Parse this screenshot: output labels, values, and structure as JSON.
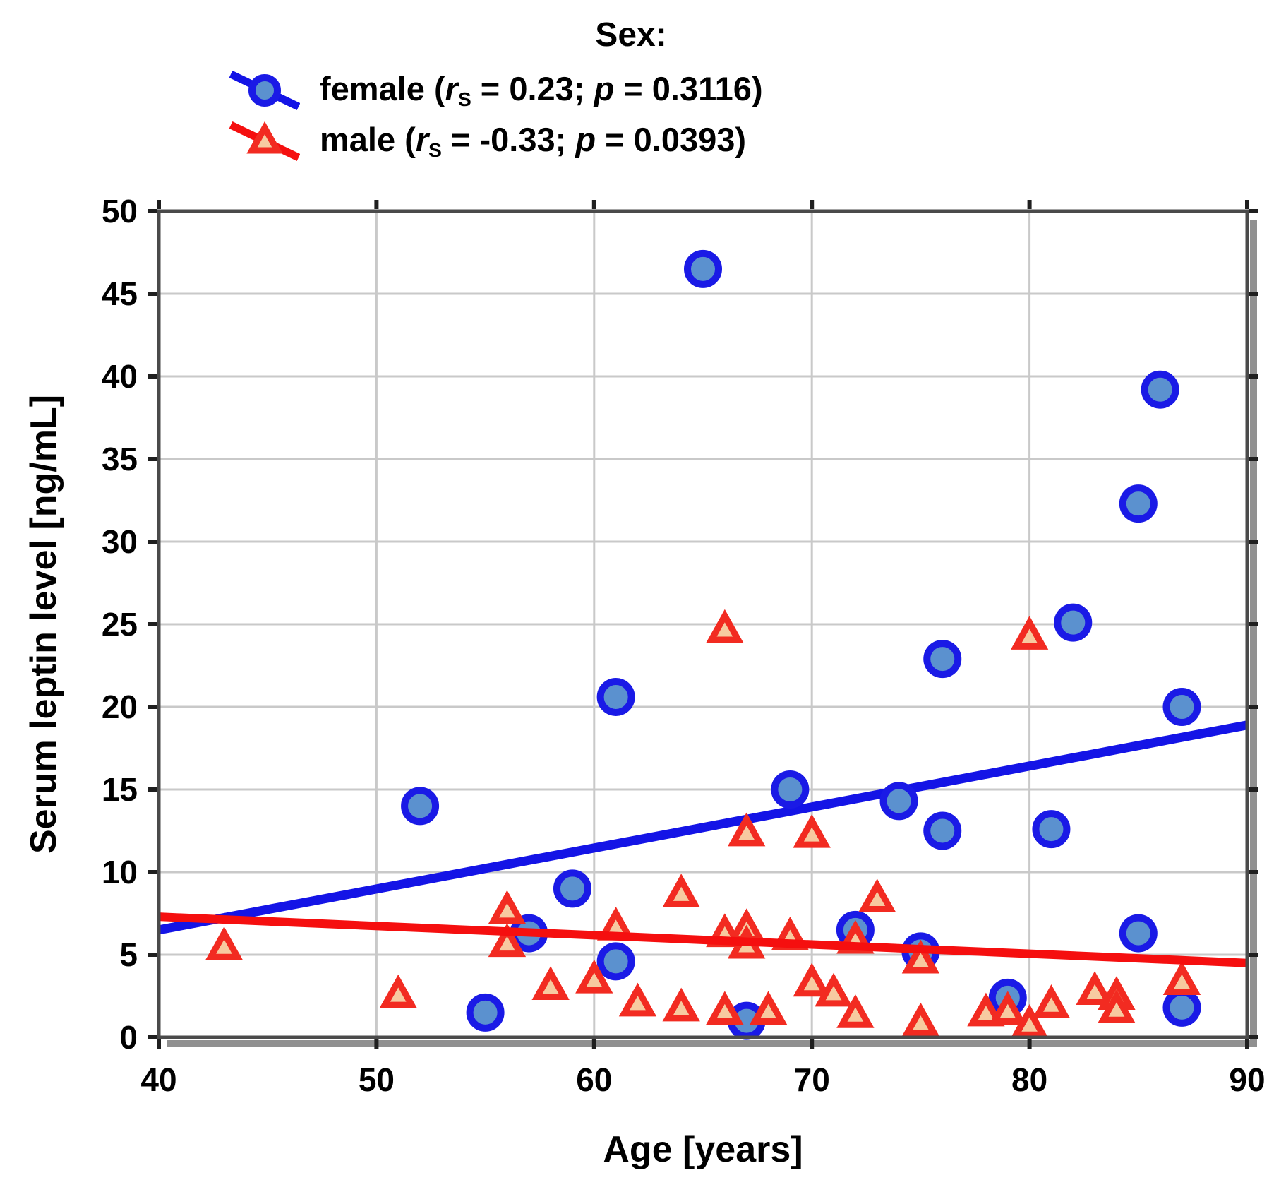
{
  "chart_data": {
    "type": "scatter",
    "xlabel": "Age [years]",
    "ylabel": "Serum leptin level [ng/mL]",
    "xlim": [
      40,
      90
    ],
    "ylim": [
      0,
      50
    ],
    "x_ticks": [
      40,
      50,
      60,
      70,
      80,
      90
    ],
    "y_ticks": [
      0,
      5,
      10,
      15,
      20,
      25,
      30,
      35,
      40,
      45,
      50
    ],
    "grid": true,
    "legend_position": "top-center",
    "legend": {
      "title": "Sex:",
      "items": [
        {
          "series": "female",
          "plain": "female (rS = 0.23; p = 0.3116)",
          "runs": [
            {
              "t": "female ("
            },
            {
              "t": "r",
              "i": true
            },
            {
              "t": "S",
              "sub": true
            },
            {
              "t": " = 0.23; "
            },
            {
              "t": "p",
              "i": true
            },
            {
              "t": " = 0.3116)"
            }
          ]
        },
        {
          "series": "male",
          "plain": "male (rS = -0.33; p = 0.0393)",
          "runs": [
            {
              "t": "male ("
            },
            {
              "t": "r",
              "i": true
            },
            {
              "t": "S",
              "sub": true
            },
            {
              "t": " = -0.33; "
            },
            {
              "t": "p",
              "i": true
            },
            {
              "t": " = 0.0393)"
            }
          ]
        }
      ]
    },
    "stats": {
      "female": {
        "rs": "0.23",
        "p": "0.3116"
      },
      "male": {
        "rs": "-0.33",
        "p": "0.0393"
      }
    },
    "series": [
      {
        "name": "female",
        "marker": "circle",
        "marker_fill": "#5b91cf",
        "marker_stroke": "#1a1ae6",
        "trend_color": "#1414e6",
        "trend": {
          "x1": 40,
          "y1": 6.5,
          "x2": 90,
          "y2": 18.9
        },
        "points": [
          [
            52,
            14.0
          ],
          [
            55,
            1.5
          ],
          [
            57,
            6.3
          ],
          [
            59,
            9.0
          ],
          [
            61,
            20.6
          ],
          [
            61,
            4.6
          ],
          [
            65,
            46.5
          ],
          [
            67,
            1.0
          ],
          [
            69,
            15.0
          ],
          [
            72,
            6.5
          ],
          [
            74,
            14.3
          ],
          [
            75,
            5.2
          ],
          [
            76,
            22.9
          ],
          [
            76,
            12.5
          ],
          [
            79,
            2.4
          ],
          [
            81,
            12.6
          ],
          [
            82,
            25.1
          ],
          [
            85,
            32.3
          ],
          [
            85,
            6.3
          ],
          [
            86,
            39.2
          ],
          [
            87,
            20.0
          ],
          [
            87,
            1.8
          ]
        ]
      },
      {
        "name": "male",
        "marker": "triangle",
        "marker_fill": "#f7caa0",
        "marker_stroke": "#f22b21",
        "trend_color": "#f50f0f",
        "trend": {
          "x1": 40,
          "y1": 7.3,
          "x2": 90,
          "y2": 4.5
        },
        "points": [
          [
            43,
            5.5
          ],
          [
            51,
            2.6
          ],
          [
            56,
            7.7
          ],
          [
            56,
            5.7
          ],
          [
            58,
            3.1
          ],
          [
            60,
            3.5
          ],
          [
            61,
            6.7
          ],
          [
            62,
            2.1
          ],
          [
            64,
            8.7
          ],
          [
            64,
            1.8
          ],
          [
            66,
            24.7
          ],
          [
            66,
            6.3
          ],
          [
            66,
            1.6
          ],
          [
            67,
            12.4
          ],
          [
            67,
            6.6
          ],
          [
            67,
            5.6
          ],
          [
            68,
            1.6
          ],
          [
            69,
            6.1
          ],
          [
            70,
            12.3
          ],
          [
            70,
            3.3
          ],
          [
            71,
            2.7
          ],
          [
            72,
            5.9
          ],
          [
            72,
            1.4
          ],
          [
            73,
            8.4
          ],
          [
            75,
            4.7
          ],
          [
            75,
            0.9
          ],
          [
            78,
            1.5
          ],
          [
            79,
            1.6
          ],
          [
            80,
            24.3
          ],
          [
            80,
            0.8
          ],
          [
            81,
            2.0
          ],
          [
            83,
            2.8
          ],
          [
            84,
            2.5
          ],
          [
            84,
            1.7
          ],
          [
            87,
            3.4
          ]
        ]
      }
    ]
  },
  "colors": {
    "grid": "#c9c9c9",
    "frame": "#4a4a4a",
    "frame_shadow": "#909090",
    "tick": "#1f1f1f",
    "text": "#000000",
    "background": "#ffffff"
  }
}
